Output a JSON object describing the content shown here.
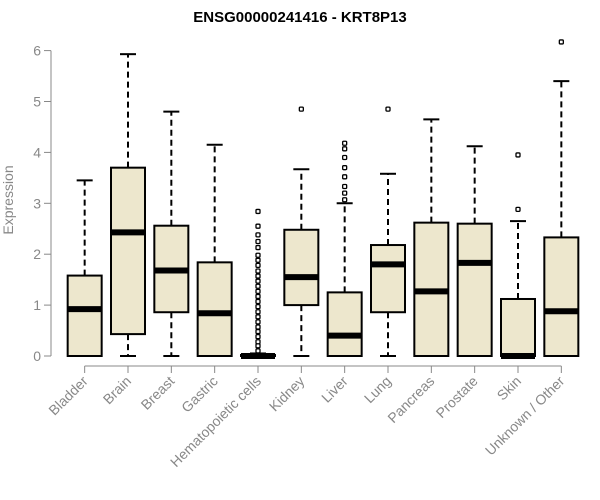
{
  "chart_data": {
    "type": "boxplot",
    "title": "ENSG00000241416 - KRT8P13",
    "xlabel": "",
    "ylabel": "Expression",
    "ylim": [
      0,
      6.3
    ],
    "yticks": [
      0,
      1,
      2,
      3,
      4,
      5,
      6
    ],
    "box_fill": "#ede7cd",
    "box_stroke": "#000000",
    "median_color": "#000000",
    "categories": [
      "Bladder",
      "Brain",
      "Breast",
      "Gastric",
      "Hematopoietic cells",
      "Kidney",
      "Liver",
      "Lung",
      "Pancreas",
      "Prostate",
      "Skin",
      "Unknown / Other"
    ],
    "boxes": [
      {
        "category": "Bladder",
        "whisker_low": 0,
        "q1": 0,
        "median": 0.92,
        "q3": 1.58,
        "whisker_high": 3.45,
        "outliers": []
      },
      {
        "category": "Brain",
        "whisker_low": 0,
        "q1": 0.43,
        "median": 2.43,
        "q3": 3.7,
        "whisker_high": 5.93,
        "outliers": []
      },
      {
        "category": "Breast",
        "whisker_low": 0,
        "q1": 0.86,
        "median": 1.68,
        "q3": 2.56,
        "whisker_high": 4.8,
        "outliers": []
      },
      {
        "category": "Gastric",
        "whisker_low": 0,
        "q1": 0,
        "median": 0.84,
        "q3": 1.84,
        "whisker_high": 4.15,
        "outliers": []
      },
      {
        "category": "Hematopoietic cells",
        "whisker_low": 0,
        "q1": 0,
        "median": 0,
        "q3": 0.02,
        "whisker_high": 0.05,
        "outliers": [
          0.1,
          0.2,
          0.28,
          0.38,
          0.48,
          0.57,
          0.67,
          0.77,
          0.87,
          0.97,
          1.07,
          1.17,
          1.27,
          1.37,
          1.47,
          1.57,
          1.67,
          1.78,
          1.88,
          1.98,
          2.13,
          2.25,
          2.38,
          2.55,
          2.84
        ]
      },
      {
        "category": "Kidney",
        "whisker_low": 0,
        "q1": 1.0,
        "median": 1.55,
        "q3": 2.48,
        "whisker_high": 3.67,
        "outliers": [
          4.85
        ]
      },
      {
        "category": "Liver",
        "whisker_low": 0,
        "q1": 0,
        "median": 0.4,
        "q3": 1.25,
        "whisker_high": 3.0,
        "outliers": [
          3.07,
          3.2,
          3.33,
          3.52,
          3.7,
          3.9,
          4.07,
          4.18
        ]
      },
      {
        "category": "Lung",
        "whisker_low": 0,
        "q1": 0.86,
        "median": 1.8,
        "q3": 2.18,
        "whisker_high": 3.58,
        "outliers": [
          4.85
        ]
      },
      {
        "category": "Pancreas",
        "whisker_low": 0,
        "q1": 0,
        "median": 1.27,
        "q3": 2.62,
        "whisker_high": 4.65,
        "outliers": []
      },
      {
        "category": "Prostate",
        "whisker_low": 0,
        "q1": 0,
        "median": 1.83,
        "q3": 2.6,
        "whisker_high": 4.12,
        "outliers": []
      },
      {
        "category": "Skin",
        "whisker_low": 0,
        "q1": 0,
        "median": 0,
        "q3": 1.12,
        "whisker_high": 2.65,
        "outliers": [
          2.88,
          3.95
        ]
      },
      {
        "category": "Unknown / Other",
        "whisker_low": 0,
        "q1": 0,
        "median": 0.88,
        "q3": 2.33,
        "whisker_high": 5.4,
        "outliers": [
          6.17
        ]
      }
    ]
  }
}
